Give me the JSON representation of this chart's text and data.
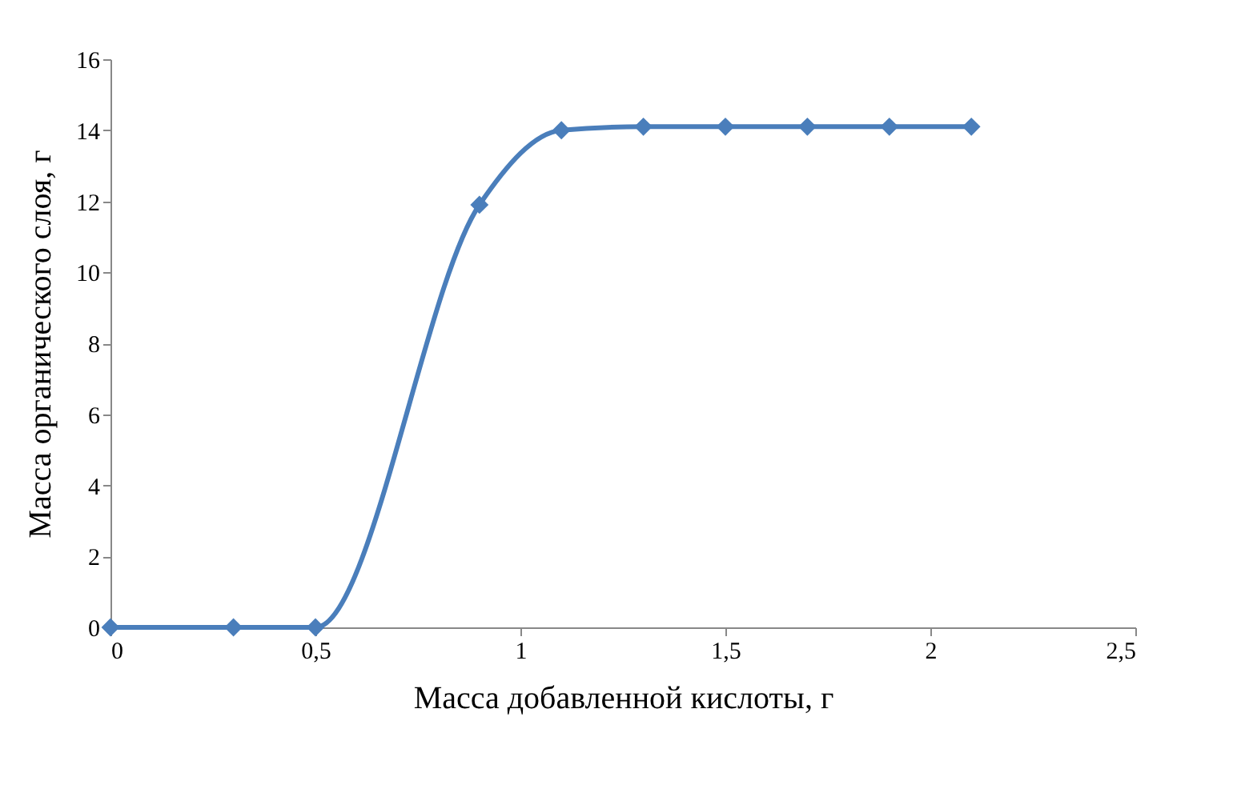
{
  "chart_data": {
    "type": "line",
    "xlabel": "Масса добавленной кислоты, г",
    "ylabel": "Масса органического слоя, г",
    "x": [
      0,
      0.3,
      0.5,
      0.9,
      1.1,
      1.3,
      1.5,
      1.7,
      1.9,
      2.1
    ],
    "series": [
      {
        "color": "#4a7ebb",
        "values": [
          0,
          0,
          0,
          11.9,
          14,
          14.1,
          14.1,
          14.1,
          14.1,
          14.1
        ]
      }
    ],
    "xlim": [
      0,
      2.5
    ],
    "xticks": [
      0,
      {
        "value": 0.5,
        "label": "0,5"
      },
      1,
      {
        "value": 1.5,
        "label": "1,5"
      },
      2,
      {
        "value": 2.5,
        "label": "2,5"
      }
    ],
    "ylim": [
      0,
      16
    ],
    "yticks": [
      0,
      2,
      4,
      6,
      8,
      10,
      12,
      14,
      16
    ],
    "grid": false,
    "marker": "diamond",
    "line_style": "solid"
  }
}
